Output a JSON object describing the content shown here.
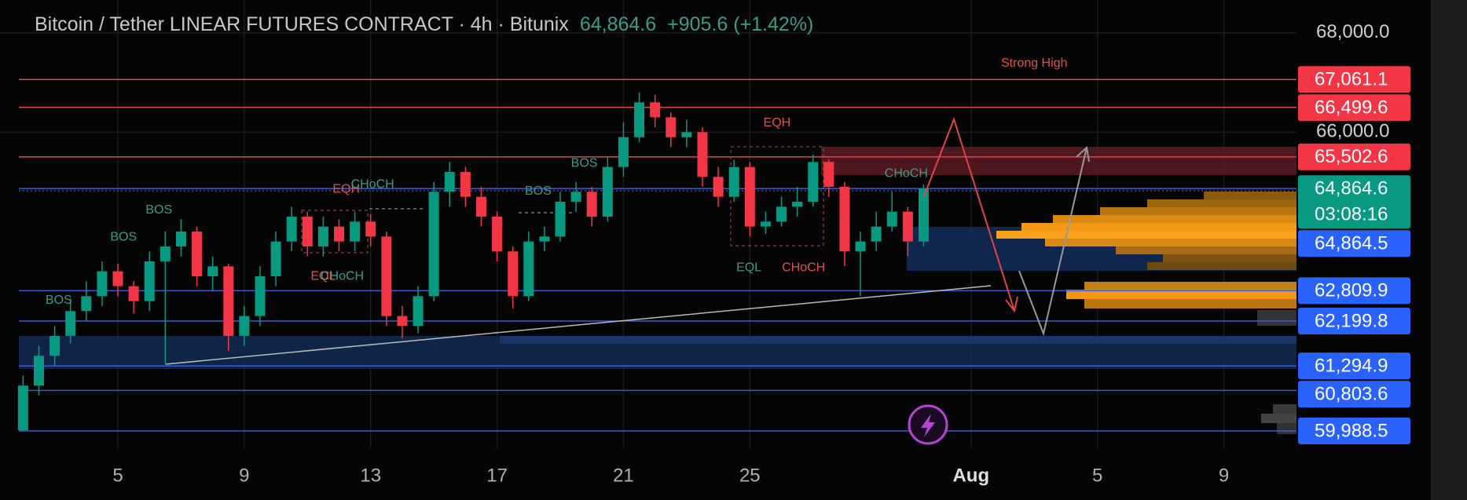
{
  "chart_data": {
    "type": "candlestick",
    "title": "Bitcoin / Tether LINEAR FUTURES CONTRACT · 4h · Bitunix",
    "price": "64,864.6",
    "change": "+905.6 (+1.42%)",
    "countdown": "03:08:16",
    "up_color": "#089981",
    "down_color": "#f23645",
    "x": [
      2.0,
      2.5,
      3.0,
      3.5,
      4.0,
      4.5,
      5.0,
      5.5,
      6.0,
      6.5,
      7.0,
      7.5,
      8.0,
      8.5,
      9.0,
      9.5,
      10.0,
      10.5,
      11.0,
      11.5,
      12.0,
      12.5,
      13.0,
      13.5,
      14.0,
      14.5,
      15.0,
      15.5,
      16.0,
      16.5,
      17.0,
      17.5,
      18.0,
      18.5,
      19.0,
      19.5,
      20.0,
      20.5,
      21.0,
      21.5,
      22.0,
      22.5,
      23.0,
      23.5,
      24.0,
      24.5,
      25.0,
      25.5,
      26.0,
      26.5,
      27.0,
      27.5,
      28.0,
      28.5,
      29.0,
      29.5,
      30.0,
      30.5
    ],
    "open": [
      60000,
      60900,
      61500,
      61900,
      62400,
      62700,
      63200,
      62900,
      62600,
      63400,
      63700,
      64000,
      63100,
      63300,
      61900,
      62300,
      63100,
      63800,
      64300,
      63700,
      64100,
      63800,
      64200,
      63900,
      62300,
      62100,
      62700,
      64800,
      65200,
      64700,
      64300,
      63600,
      62700,
      63800,
      63900,
      64600,
      64800,
      64300,
      65300,
      65900,
      66600,
      66300,
      65900,
      66000,
      65100,
      64700,
      65300,
      64100,
      64200,
      64500,
      64600,
      65400,
      64900,
      63600,
      63800,
      64100,
      64400,
      63800
    ],
    "high": [
      61100,
      61700,
      62100,
      62650,
      63000,
      63400,
      63350,
      63000,
      63600,
      64000,
      64250,
      64100,
      63500,
      63350,
      62500,
      63300,
      64000,
      64500,
      64400,
      64300,
      64250,
      64400,
      64350,
      64000,
      62500,
      62900,
      65000,
      65400,
      65300,
      64900,
      64400,
      63700,
      64000,
      64100,
      64800,
      65000,
      64900,
      65500,
      66200,
      66800,
      66750,
      66400,
      66250,
      66100,
      65300,
      65450,
      65400,
      64400,
      64700,
      64900,
      65550,
      65450,
      65000,
      64000,
      64400,
      64800,
      64500,
      64950
    ],
    "low": [
      59990,
      60700,
      61300,
      61750,
      62200,
      62500,
      62700,
      62350,
      62400,
      61330,
      63500,
      62900,
      62800,
      61600,
      61700,
      62100,
      62900,
      63600,
      63500,
      63500,
      63600,
      63600,
      63700,
      62100,
      61850,
      61950,
      62600,
      64500,
      64500,
      64100,
      63400,
      62450,
      62600,
      63600,
      63800,
      64400,
      64100,
      64200,
      65100,
      65800,
      66100,
      65700,
      65700,
      64900,
      64500,
      64600,
      63900,
      63950,
      64100,
      64300,
      64500,
      64700,
      63300,
      62700,
      63600,
      64000,
      63500,
      63700
    ],
    "close": [
      60900,
      61500,
      61900,
      62400,
      62700,
      63200,
      62900,
      62600,
      63400,
      63700,
      64000,
      63100,
      63300,
      61900,
      62300,
      63100,
      63800,
      64300,
      63700,
      64100,
      63800,
      64200,
      63900,
      62300,
      62100,
      62700,
      64800,
      65200,
      64700,
      64300,
      63600,
      62700,
      63800,
      63900,
      64600,
      64800,
      64300,
      65300,
      65900,
      66600,
      66300,
      65900,
      66000,
      65100,
      64700,
      65300,
      64100,
      64200,
      64500,
      64600,
      65400,
      64900,
      63600,
      63800,
      64100,
      64400,
      63800,
      64864.6
    ],
    "xlim": [
      1.27,
      42.3
    ],
    "ylim": [
      59640,
      68660
    ],
    "xticks": [
      5,
      9,
      13,
      17,
      21,
      25,
      {
        "value": 32,
        "label": "Aug"
      },
      {
        "value": 36,
        "label": "5"
      },
      {
        "value": 40,
        "label": "9"
      }
    ],
    "yticks": [
      {
        "value": 66000,
        "label": "66,000.0"
      },
      {
        "value": 68000,
        "label": "68,000.0"
      }
    ],
    "grid": true,
    "levels": [
      {
        "value": 67061.1,
        "label": "67,061.1",
        "color": "#f23645"
      },
      {
        "value": 66499.6,
        "label": "66,499.6",
        "color": "#f23645"
      },
      {
        "value": 65502.6,
        "label": "65,502.6",
        "color": "#f23645"
      },
      {
        "value": 64864.6,
        "label": "64,864.6",
        "color": "#089981"
      },
      {
        "value": 64864.5,
        "label": "64,864.5",
        "color": "#2962ff"
      },
      {
        "value": 62809.9,
        "label": "62,809.9",
        "color": "#2962ff"
      },
      {
        "value": 62199.8,
        "label": "62,199.8",
        "color": "#2962ff"
      },
      {
        "value": 61294.9,
        "label": "61,294.9",
        "color": "#2962ff"
      },
      {
        "value": 60803.6,
        "label": "60,803.6",
        "color": "#2962ff"
      },
      {
        "value": 59988.5,
        "label": "59,988.5",
        "color": "#2962ff"
      }
    ],
    "annotations": [
      {
        "text": "Strong High",
        "x": 34.0,
        "y": 67385,
        "color": "#e0504d"
      },
      {
        "text": "EQH",
        "x": 25.86,
        "y": 66181,
        "color": "#e0504d"
      },
      {
        "text": "CHoCH",
        "x": 29.95,
        "y": 65166,
        "color": "#3b9c8a"
      },
      {
        "text": "BOS",
        "x": 19.76,
        "y": 65373,
        "color": "#3b9c8a"
      },
      {
        "text": "BOS",
        "x": 18.3,
        "y": 64809,
        "color": "#3b9c8a"
      },
      {
        "text": "EQH",
        "x": 12.23,
        "y": 64847,
        "color": "#e0504d"
      },
      {
        "text": "CHoCH",
        "x": 13.06,
        "y": 64941,
        "color": "#3b9c8a"
      },
      {
        "text": "BOS",
        "x": 6.3,
        "y": 64433,
        "color": "#3b9c8a"
      },
      {
        "text": "BOS",
        "x": 5.18,
        "y": 63888,
        "color": "#3b9c8a"
      },
      {
        "text": "BOS",
        "x": 3.13,
        "y": 62610,
        "color": "#3b9c8a"
      },
      {
        "text": "EQL",
        "x": 11.5,
        "y": 63098,
        "color": "#e0504d"
      },
      {
        "text": "CHoCH",
        "x": 12.1,
        "y": 63098,
        "color": "#3b9c8a"
      },
      {
        "text": "EQL",
        "x": 24.97,
        "y": 63267,
        "color": "#3b9c8a"
      },
      {
        "text": "CHoCH",
        "x": 26.7,
        "y": 63267,
        "color": "#e0504d"
      }
    ]
  }
}
